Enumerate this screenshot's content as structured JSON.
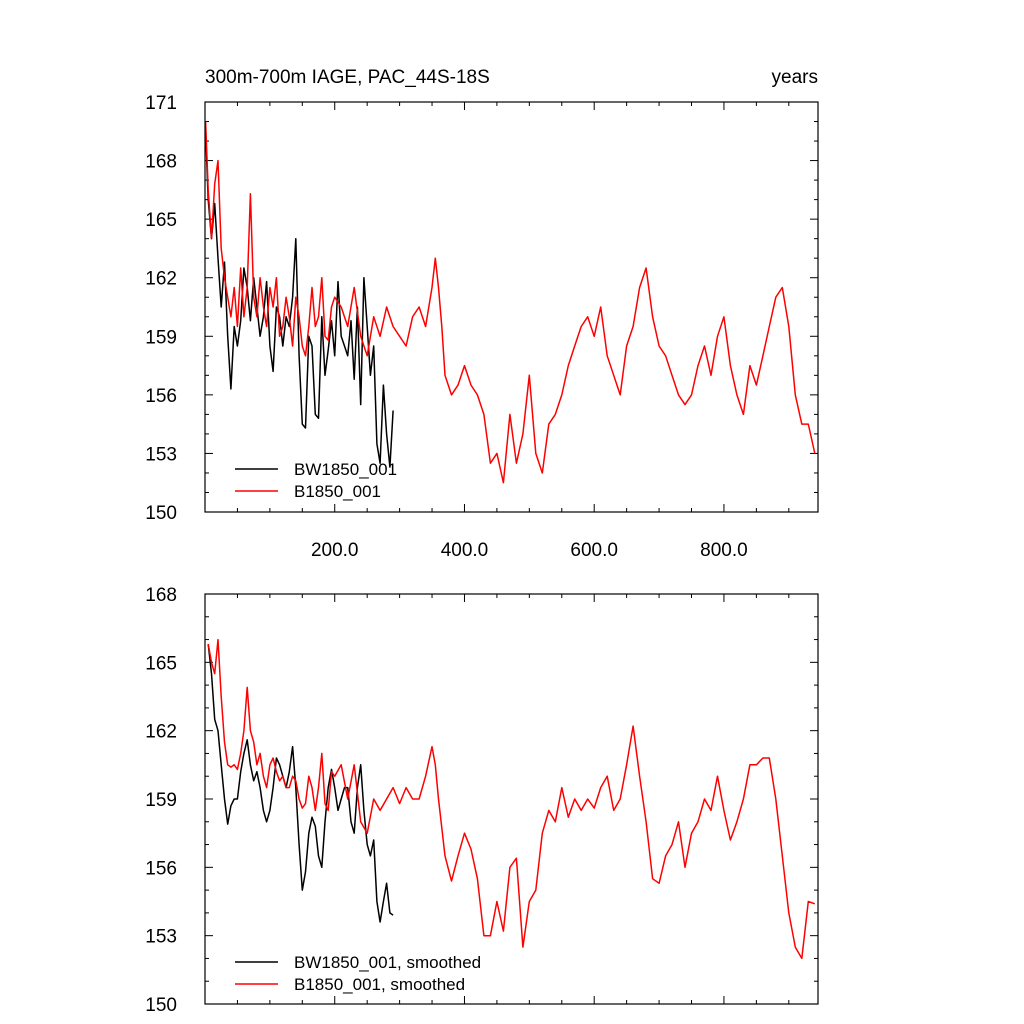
{
  "chart_data": [
    {
      "type": "line",
      "title": "300m-700m IAGE, PAC_44S-18S",
      "units": "years",
      "xlim": [
        0,
        945
      ],
      "ylim": [
        150,
        171
      ],
      "yticks": [
        "150",
        "153",
        "156",
        "159",
        "162",
        "165",
        "168",
        "171"
      ],
      "xticks": [
        "200.0",
        "400.0",
        "600.0",
        "800.0"
      ],
      "legend_position": "bottom-left",
      "series": [
        {
          "name": "BW1850_001",
          "color": "#000000",
          "x": [
            1,
            5,
            10,
            15,
            20,
            25,
            30,
            35,
            40,
            45,
            50,
            55,
            60,
            65,
            70,
            75,
            80,
            85,
            90,
            95,
            100,
            105,
            110,
            115,
            120,
            125,
            130,
            135,
            140,
            145,
            150,
            155,
            160,
            165,
            170,
            175,
            180,
            185,
            190,
            195,
            200,
            205,
            210,
            215,
            220,
            225,
            230,
            235,
            240,
            245,
            250,
            255,
            260,
            265,
            270,
            275,
            280,
            285,
            290
          ],
          "values": [
            169.5,
            166.0,
            164.0,
            165.8,
            163.0,
            160.5,
            162.8,
            159.0,
            156.3,
            159.5,
            158.5,
            159.8,
            162.5,
            161.5,
            159.8,
            162.0,
            160.5,
            159.0,
            160.0,
            161.8,
            158.5,
            157.2,
            160.5,
            160.0,
            158.5,
            160.0,
            159.5,
            161.0,
            164.0,
            158.0,
            154.5,
            154.3,
            159.0,
            158.5,
            155.0,
            154.8,
            160.0,
            157.0,
            158.3,
            159.8,
            158.0,
            161.8,
            159.0,
            158.5,
            158.0,
            159.8,
            156.8,
            160.5,
            155.5,
            162.0,
            159.5,
            157.0,
            158.5,
            153.5,
            152.5,
            156.5,
            154.0,
            152.3,
            155.2
          ]
        },
        {
          "name": "B1850_001",
          "color": "#ff0000",
          "x": [
            1,
            5,
            10,
            15,
            20,
            25,
            30,
            35,
            40,
            45,
            50,
            55,
            60,
            65,
            70,
            75,
            80,
            85,
            90,
            95,
            100,
            105,
            110,
            115,
            120,
            125,
            130,
            135,
            140,
            145,
            150,
            155,
            160,
            165,
            170,
            175,
            180,
            185,
            190,
            195,
            200,
            210,
            220,
            230,
            240,
            250,
            260,
            270,
            280,
            290,
            300,
            310,
            320,
            330,
            340,
            350,
            355,
            360,
            365,
            370,
            380,
            390,
            400,
            410,
            420,
            430,
            440,
            450,
            460,
            470,
            480,
            490,
            500,
            510,
            520,
            530,
            540,
            550,
            560,
            570,
            580,
            590,
            600,
            610,
            620,
            630,
            640,
            650,
            660,
            670,
            680,
            690,
            700,
            710,
            720,
            730,
            740,
            750,
            760,
            770,
            780,
            790,
            800,
            810,
            820,
            830,
            840,
            850,
            860,
            870,
            880,
            890,
            900,
            910,
            920,
            930,
            940
          ],
          "values": [
            170.0,
            166.5,
            164.0,
            166.8,
            168.0,
            163.5,
            162.0,
            161.0,
            160.0,
            161.5,
            159.5,
            162.5,
            160.0,
            161.5,
            166.3,
            161.0,
            160.0,
            162.0,
            160.5,
            159.5,
            161.5,
            160.5,
            162.0,
            159.0,
            159.5,
            161.0,
            160.0,
            158.5,
            161.0,
            160.0,
            158.5,
            158.0,
            159.5,
            161.5,
            159.5,
            160.0,
            162.0,
            159.0,
            158.8,
            160.5,
            161.0,
            160.5,
            159.5,
            161.5,
            159.0,
            158.0,
            160.0,
            159.0,
            160.5,
            159.5,
            159.0,
            158.5,
            160.0,
            160.5,
            159.5,
            161.5,
            163.0,
            161.5,
            159.5,
            157.0,
            156.0,
            156.5,
            157.5,
            156.5,
            156.0,
            155.0,
            152.5,
            153.0,
            151.5,
            155.0,
            152.5,
            154.0,
            157.0,
            153.0,
            152.0,
            154.5,
            155.0,
            156.0,
            157.5,
            158.5,
            159.5,
            160.0,
            159.0,
            160.5,
            158.0,
            157.0,
            156.0,
            158.5,
            159.5,
            161.5,
            162.5,
            160.0,
            158.5,
            158.0,
            157.0,
            156.0,
            155.5,
            156.0,
            157.5,
            158.5,
            157.0,
            159.0,
            160.0,
            157.5,
            156.0,
            155.0,
            157.5,
            156.5,
            158.0,
            159.5,
            161.0,
            161.5,
            159.5,
            156.0,
            154.5,
            154.5,
            153.0
          ]
        }
      ]
    },
    {
      "type": "line",
      "title": "",
      "xlim": [
        0,
        945
      ],
      "ylim": [
        150,
        168
      ],
      "yticks": [
        "150",
        "153",
        "156",
        "159",
        "162",
        "165",
        "168"
      ],
      "legend_position": "bottom-left",
      "series": [
        {
          "name": "BW1850_001, smoothed",
          "color": "#000000",
          "x": [
            5,
            10,
            15,
            20,
            25,
            30,
            35,
            40,
            45,
            50,
            55,
            60,
            65,
            70,
            75,
            80,
            85,
            90,
            95,
            100,
            105,
            110,
            115,
            120,
            125,
            130,
            135,
            140,
            145,
            150,
            155,
            160,
            165,
            170,
            175,
            180,
            185,
            190,
            195,
            200,
            205,
            210,
            215,
            220,
            225,
            230,
            235,
            240,
            245,
            250,
            255,
            260,
            265,
            270,
            275,
            280,
            285,
            290
          ],
          "values": [
            165.8,
            164.5,
            162.5,
            162.0,
            160.5,
            159.0,
            157.9,
            158.7,
            159.0,
            159.0,
            160.2,
            161.0,
            161.6,
            160.5,
            159.8,
            160.2,
            159.5,
            158.5,
            158.0,
            158.5,
            159.5,
            160.8,
            160.5,
            160.0,
            159.5,
            160.2,
            161.3,
            159.5,
            157.0,
            155.0,
            155.8,
            157.5,
            158.2,
            157.8,
            156.5,
            156.0,
            158.0,
            159.5,
            160.3,
            159.5,
            158.5,
            159.0,
            159.5,
            159.5,
            158.0,
            157.5,
            159.5,
            160.5,
            158.5,
            157.0,
            156.5,
            157.2,
            154.5,
            153.6,
            154.5,
            155.3,
            154.0,
            153.9
          ]
        },
        {
          "name": "B1850_001, smoothed",
          "color": "#ff0000",
          "x": [
            5,
            10,
            15,
            20,
            25,
            30,
            35,
            40,
            45,
            50,
            55,
            60,
            65,
            70,
            75,
            80,
            85,
            90,
            95,
            100,
            105,
            110,
            115,
            120,
            125,
            130,
            135,
            140,
            145,
            150,
            155,
            160,
            165,
            170,
            175,
            180,
            185,
            190,
            195,
            200,
            210,
            220,
            230,
            240,
            250,
            260,
            270,
            280,
            290,
            300,
            310,
            320,
            330,
            340,
            350,
            355,
            360,
            370,
            380,
            390,
            400,
            410,
            420,
            430,
            440,
            450,
            460,
            470,
            480,
            490,
            500,
            510,
            520,
            530,
            540,
            550,
            560,
            570,
            580,
            590,
            600,
            610,
            620,
            630,
            640,
            650,
            660,
            670,
            680,
            690,
            700,
            710,
            720,
            730,
            740,
            750,
            760,
            770,
            780,
            790,
            800,
            810,
            820,
            830,
            840,
            850,
            860,
            870,
            880,
            890,
            900,
            910,
            920,
            930,
            940
          ],
          "values": [
            165.8,
            165.0,
            164.5,
            166.0,
            163.5,
            161.5,
            160.5,
            160.4,
            160.5,
            160.3,
            161.0,
            162.0,
            163.9,
            162.0,
            161.5,
            160.5,
            161.0,
            160.0,
            159.5,
            160.5,
            160.8,
            160.2,
            159.8,
            160.0,
            159.5,
            159.5,
            160.0,
            159.8,
            159.0,
            158.6,
            158.8,
            160.0,
            159.5,
            158.5,
            159.5,
            161.0,
            158.8,
            158.5,
            160.2,
            160.0,
            160.5,
            159.0,
            160.5,
            158.0,
            157.5,
            159.0,
            158.5,
            159.0,
            159.5,
            158.8,
            159.5,
            159.0,
            159.0,
            160.0,
            161.3,
            160.5,
            159.0,
            156.5,
            155.4,
            156.5,
            157.5,
            156.8,
            155.5,
            153.0,
            153.0,
            154.5,
            153.2,
            156.0,
            156.4,
            152.5,
            154.5,
            155.0,
            157.5,
            158.5,
            158.0,
            159.5,
            158.2,
            159.0,
            158.5,
            159.0,
            158.6,
            159.5,
            160.0,
            158.5,
            159.0,
            160.5,
            162.2,
            160.0,
            158.0,
            155.5,
            155.3,
            156.5,
            157.0,
            158.0,
            156.0,
            157.5,
            158.0,
            159.0,
            158.5,
            160.0,
            158.5,
            157.2,
            158.0,
            159.0,
            160.5,
            160.5,
            160.8,
            160.8,
            159.0,
            156.5,
            154.0,
            152.5,
            152.0,
            154.5,
            154.4
          ]
        }
      ]
    }
  ]
}
